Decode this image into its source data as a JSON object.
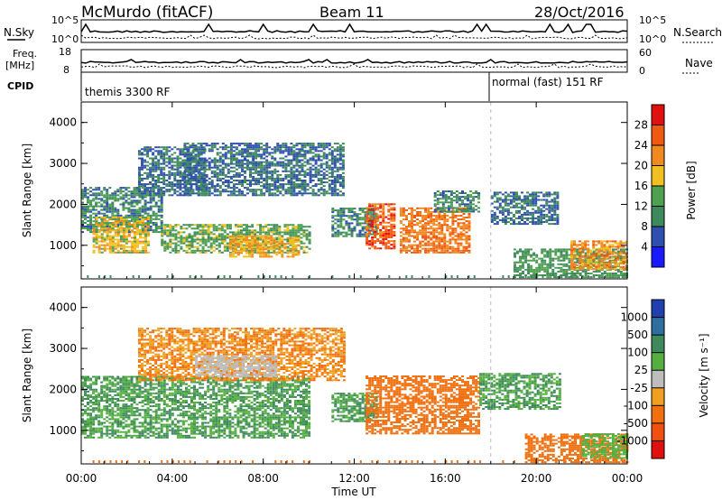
{
  "header": {
    "station": "McMurdo (fitACF)",
    "beam": "Beam 11",
    "date": "28/Oct/2016"
  },
  "params_panel": {
    "left_labels": [
      "N.Sky",
      "Freq.",
      "[MHz]",
      "CPID"
    ],
    "left_ticks": {
      "nsky_top": "10^5",
      "nsky_bottom": "10^0",
      "freq_top": "18",
      "freq_bottom": "8"
    },
    "right_labels": [
      "N.Search",
      "Nave"
    ],
    "right_ticks": {
      "nsearch_top": "10^5",
      "nsearch_bottom": "10^0",
      "nave_top": "60",
      "nave_bottom": "0"
    },
    "cpid_segments": [
      {
        "label": "themis 3300 RF",
        "start": "00:00",
        "end": "18:00"
      },
      {
        "label": "normal (fast) 151 RF",
        "start": "18:00",
        "end": "24:00"
      }
    ]
  },
  "colors": {
    "power_scale": [
      "#1a1aff",
      "#2f4fb0",
      "#3e8a5c",
      "#4fa050",
      "#f0c020",
      "#f08a20",
      "#f05a10",
      "#e01010"
    ],
    "velocity_scale": [
      "#2040b0",
      "#2f6fa0",
      "#3e8a5c",
      "#55b040",
      "#bdbdbd",
      "#f0a020",
      "#f07010",
      "#f05010",
      "#e01010"
    ]
  },
  "chart_data": [
    {
      "type": "heatmap",
      "title": "",
      "ylabel": "Slant Range [km]",
      "xlabel": "",
      "x_ticks": [
        "00:00",
        "04:00",
        "08:00",
        "12:00",
        "16:00",
        "20:00",
        "00:00"
      ],
      "y_ticks": [
        "1000",
        "2000",
        "3000",
        "4000"
      ],
      "xlim_hours": [
        0,
        24
      ],
      "ylim_km": [
        180,
        4500
      ],
      "colorbar": {
        "label": "Power [dB]",
        "ticks": [
          "4",
          "8",
          "12",
          "16",
          "20",
          "24",
          "28"
        ],
        "range": [
          0,
          30
        ]
      },
      "echo_regions": [
        {
          "t0": 0.0,
          "t1": 3.5,
          "r0": 1300,
          "r1": 2400,
          "level": 10
        },
        {
          "t0": 0.5,
          "t1": 3.0,
          "r0": 800,
          "r1": 1700,
          "level": 18
        },
        {
          "t0": 2.5,
          "t1": 5.5,
          "r0": 2200,
          "r1": 3400,
          "level": 8
        },
        {
          "t0": 3.5,
          "t1": 10.0,
          "r0": 800,
          "r1": 1500,
          "level": 14
        },
        {
          "t0": 6.5,
          "t1": 9.5,
          "r0": 700,
          "r1": 1200,
          "level": 20
        },
        {
          "t0": 4.5,
          "t1": 11.5,
          "r0": 2200,
          "r1": 3500,
          "level": 8
        },
        {
          "t0": 11.0,
          "t1": 13.0,
          "r0": 1200,
          "r1": 1900,
          "level": 10
        },
        {
          "t0": 12.5,
          "t1": 13.8,
          "r0": 900,
          "r1": 2000,
          "level": 26
        },
        {
          "t0": 14.0,
          "t1": 17.0,
          "r0": 800,
          "r1": 1900,
          "level": 24
        },
        {
          "t0": 15.5,
          "t1": 17.5,
          "r0": 1800,
          "r1": 2300,
          "level": 10
        },
        {
          "t0": 18.0,
          "t1": 21.0,
          "r0": 1500,
          "r1": 2300,
          "level": 8
        },
        {
          "t0": 19.0,
          "t1": 24.0,
          "r0": 200,
          "r1": 900,
          "level": 12
        },
        {
          "t0": 21.5,
          "t1": 24.0,
          "r0": 400,
          "r1": 1100,
          "level": 22
        }
      ]
    },
    {
      "type": "heatmap",
      "title": "",
      "ylabel": "Slant Range [km]",
      "xlabel": "Time UT",
      "x_ticks": [
        "00:00",
        "04:00",
        "08:00",
        "12:00",
        "16:00",
        "20:00",
        "00:00"
      ],
      "y_ticks": [
        "1000",
        "2000",
        "3000",
        "4000"
      ],
      "xlim_hours": [
        0,
        24
      ],
      "ylim_km": [
        180,
        4500
      ],
      "colorbar": {
        "label": "Velocity [m s⁻¹]",
        "ticks": [
          "1000",
          "500",
          "100",
          "25",
          "-25",
          "-100",
          "-500",
          "-1000"
        ],
        "range": [
          -1000,
          1000
        ]
      },
      "echo_regions": [
        {
          "t0": 0.0,
          "t1": 10.0,
          "r0": 800,
          "r1": 2300,
          "level": 100
        },
        {
          "t0": 2.5,
          "t1": 11.5,
          "r0": 2200,
          "r1": 3500,
          "level": -100
        },
        {
          "t0": 5.0,
          "t1": 8.5,
          "r0": 2300,
          "r1": 2800,
          "level": 0
        },
        {
          "t0": 11.0,
          "t1": 13.0,
          "r0": 1200,
          "r1": 1900,
          "level": 100
        },
        {
          "t0": 12.5,
          "t1": 17.5,
          "r0": 900,
          "r1": 2300,
          "level": -300
        },
        {
          "t0": 17.5,
          "t1": 21.0,
          "r0": 1500,
          "r1": 2400,
          "level": 100
        },
        {
          "t0": 19.5,
          "t1": 24.0,
          "r0": 200,
          "r1": 900,
          "level": -300
        },
        {
          "t0": 22.0,
          "t1": 24.0,
          "r0": 300,
          "r1": 900,
          "level": 60
        }
      ]
    }
  ]
}
